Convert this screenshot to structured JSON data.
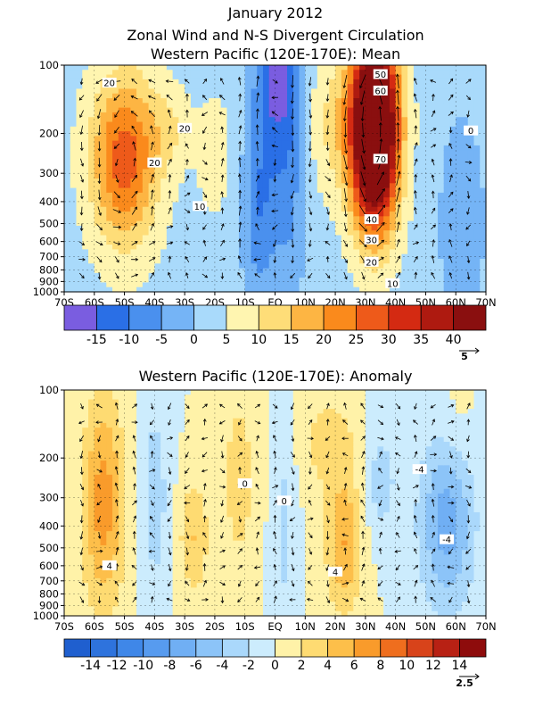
{
  "header": {
    "title_line1": "January 2012",
    "title_line2": "Zonal Wind and N-S Divergent Circulation"
  },
  "colors": {
    "frame": "#000000",
    "contour": "#000000",
    "vector": "#000000"
  },
  "chart_data": [
    {
      "type": "heatmap",
      "title": "Western Pacific (120E-170E): Mean",
      "x_ticks": [
        "70S",
        "60S",
        "50S",
        "40S",
        "30S",
        "20S",
        "10S",
        "EQ",
        "10N",
        "20N",
        "30N",
        "40N",
        "50N",
        "60N",
        "70N"
      ],
      "y_ticks": [
        "100",
        "200",
        "300",
        "400",
        "500",
        "600",
        "700",
        "800",
        "900",
        "1000"
      ],
      "y_scale": "log-pressure",
      "xlim": [
        -70,
        70
      ],
      "ylim": [
        1000,
        100
      ],
      "colorbar": {
        "labels": [
          "-15",
          "-10",
          "-5",
          "0",
          "5",
          "10",
          "15",
          "20",
          "25",
          "30",
          "35",
          "40"
        ],
        "colors": [
          "#7a5de0",
          "#2a6fe6",
          "#4a90ee",
          "#75b4f6",
          "#a9dafb",
          "#fff5b0",
          "#fedd78",
          "#fdb543",
          "#fa8a1c",
          "#ee5a1a",
          "#d42a12",
          "#ae1a10",
          "#8a0f0f"
        ]
      },
      "vector_ref": "5",
      "contour_labels": [
        "20",
        "20",
        "20",
        "10",
        "0",
        "50",
        "60",
        "70",
        "40",
        "30",
        "20",
        "10"
      ],
      "centers": [
        {
          "lat": -50,
          "p": 270,
          "value": 25
        },
        {
          "lat": 33,
          "p": 180,
          "value": 70
        },
        {
          "lat": 0,
          "p": 120,
          "value": -15
        },
        {
          "lat": 62,
          "p": 500,
          "value": -5
        }
      ]
    },
    {
      "type": "heatmap",
      "title": "Western Pacific (120E-170E): Anomaly",
      "x_ticks": [
        "70S",
        "60S",
        "50S",
        "40S",
        "30S",
        "20S",
        "10S",
        "EQ",
        "10N",
        "20N",
        "30N",
        "40N",
        "50N",
        "60N",
        "70N"
      ],
      "y_ticks": [
        "100",
        "200",
        "300",
        "400",
        "500",
        "600",
        "700",
        "800",
        "900",
        "1000"
      ],
      "y_scale": "log-pressure",
      "xlim": [
        -70,
        70
      ],
      "ylim": [
        1000,
        100
      ],
      "colorbar": {
        "labels": [
          "-14",
          "-12",
          "-10",
          "-8",
          "-6",
          "-4",
          "-2",
          "0",
          "2",
          "4",
          "6",
          "8",
          "10",
          "12",
          "14"
        ],
        "colors": [
          "#1f5fcf",
          "#2e73dd",
          "#3f87e8",
          "#579bef",
          "#70aff4",
          "#8cc4f8",
          "#aad8fb",
          "#ccecfd",
          "#fff2a8",
          "#fedb72",
          "#fdbf4a",
          "#f99b2b",
          "#ef6e1e",
          "#d8431a",
          "#b82114",
          "#8e0c0c"
        ]
      },
      "vector_ref": "2.5",
      "contour_labels": [
        "0",
        "0",
        "-4",
        "-4",
        "4",
        "4"
      ],
      "centers": [
        {
          "lat": -57,
          "p": 300,
          "value": 6
        },
        {
          "lat": -27,
          "p": 450,
          "value": 4
        },
        {
          "lat": 23,
          "p": 480,
          "value": 5
        },
        {
          "lat": 57,
          "p": 380,
          "value": -6
        }
      ]
    }
  ]
}
